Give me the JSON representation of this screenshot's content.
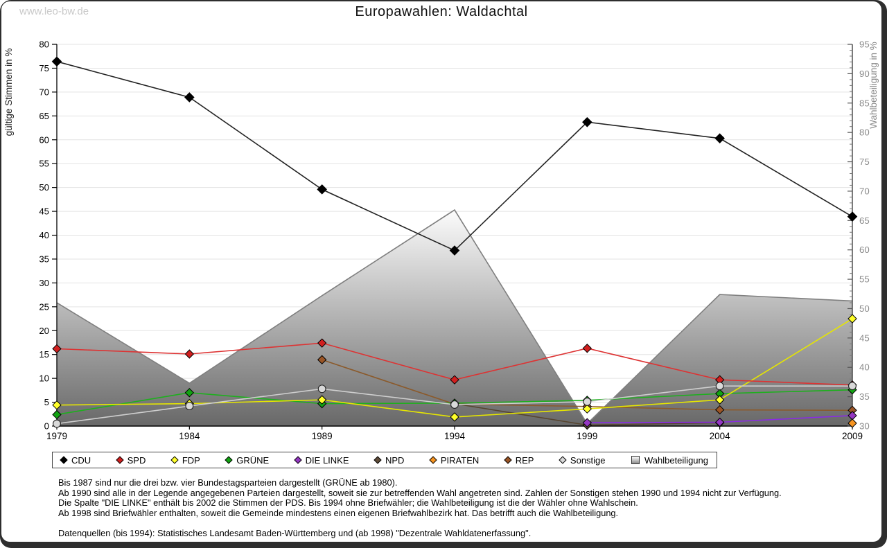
{
  "watermark": "www.leo-bw.de",
  "title": "Europawahlen: Waldachtal",
  "axes": {
    "left_label": "gültige Stimmen in %",
    "right_label": "Wahlbeteiligung in %",
    "left_min": 0,
    "left_max": 80,
    "right_min": 30,
    "right_max": 95,
    "left_ticks": [
      0,
      5,
      10,
      15,
      20,
      25,
      30,
      35,
      40,
      45,
      50,
      55,
      60,
      65,
      70,
      75,
      80
    ],
    "right_ticks": [
      30,
      35,
      40,
      45,
      50,
      55,
      60,
      65,
      70,
      75,
      80,
      85,
      90,
      95
    ]
  },
  "chart_data": {
    "type": "line",
    "x": [
      1979,
      1984,
      1989,
      1994,
      1999,
      2004,
      2009
    ],
    "series": [
      {
        "name": "CDU",
        "marker": "diamond",
        "color": "#000000",
        "line": "#222222",
        "values": [
          76.4,
          68.9,
          49.6,
          36.8,
          63.7,
          60.3,
          43.9
        ]
      },
      {
        "name": "SPD",
        "marker": "diamond",
        "color": "#d11f1f",
        "line": "#dd3333",
        "values": [
          16.2,
          15.1,
          17.4,
          9.7,
          16.3,
          9.7,
          8.6
        ]
      },
      {
        "name": "FDP",
        "marker": "diamond",
        "color": "#ffff2a",
        "line": "#e6e600",
        "values": [
          4.4,
          4.7,
          5.5,
          1.9,
          3.6,
          5.5,
          22.5
        ]
      },
      {
        "name": "GRÜNE",
        "marker": "diamond",
        "color": "#12a312",
        "line": "#1db01d",
        "values": [
          2.4,
          7.0,
          4.7,
          4.8,
          5.4,
          6.8,
          7.6
        ]
      },
      {
        "name": "DIE LINKE",
        "marker": "diamond",
        "color": "#9437c2",
        "line": "#8a2be2",
        "values": [
          null,
          null,
          null,
          null,
          0.7,
          0.8,
          2.2
        ]
      },
      {
        "name": "NPD",
        "marker": "diamond",
        "color": "#5f4c39",
        "line": "#57452f",
        "values": [
          null,
          null,
          null,
          4.7,
          0.2,
          0.7,
          null
        ]
      },
      {
        "name": "PIRATEN",
        "marker": "diamond",
        "color": "#f79420",
        "line": "#f79420",
        "values": [
          null,
          null,
          null,
          null,
          null,
          null,
          0.6
        ]
      },
      {
        "name": "REP",
        "marker": "diamond",
        "color": "#9a5526",
        "line": "#8b5a2b",
        "values": [
          null,
          null,
          13.9,
          4.6,
          4.1,
          3.4,
          3.3
        ]
      },
      {
        "name": "Sonstige",
        "marker": "circle",
        "color": "#d9d9d9",
        "line": "#cfcfcf",
        "values": [
          0.5,
          4.2,
          7.8,
          4.5,
          5.1,
          8.4,
          8.4
        ]
      }
    ],
    "turnout": {
      "name": "Wahlbeteiligung",
      "axis": "right",
      "values": [
        51.0,
        37.3,
        52.2,
        66.8,
        30.4,
        52.4,
        51.3
      ],
      "fill_top": "#fcfcfc",
      "fill_bottom": "#686868",
      "edge_color": "#7f7f7f"
    },
    "title": "Europawahlen: Waldachtal",
    "ylabel_left": "gültige Stimmen in %",
    "ylabel_right": "Wahlbeteiligung in %",
    "ylim_left": [
      0,
      80
    ],
    "ylim_right": [
      30,
      95
    ],
    "grid": true,
    "legend_position": "bottom"
  },
  "legend": {
    "items": [
      {
        "label": "CDU",
        "color": "#000000",
        "shape": "diamond"
      },
      {
        "label": "SPD",
        "color": "#d11f1f",
        "shape": "diamond"
      },
      {
        "label": "FDP",
        "color": "#ffff2a",
        "shape": "diamond"
      },
      {
        "label": "GRÜNE",
        "color": "#12a312",
        "shape": "diamond"
      },
      {
        "label": "DIE LINKE",
        "color": "#9437c2",
        "shape": "diamond"
      },
      {
        "label": "NPD",
        "color": "#5f4c39",
        "shape": "diamond"
      },
      {
        "label": "PIRATEN",
        "color": "#f79420",
        "shape": "diamond"
      },
      {
        "label": "REP",
        "color": "#9a5526",
        "shape": "diamond"
      },
      {
        "label": "Sonstige",
        "color": "#d9d9d9",
        "shape": "diamond"
      },
      {
        "label": "Wahlbeteiligung",
        "color": "#9a9a9a",
        "shape": "square"
      }
    ]
  },
  "footnotes": {
    "lines": [
      "Bis 1987 sind nur die drei bzw. vier Bundestagsparteien dargestellt (GRÜNE ab 1980).",
      "Ab 1990 sind alle in der Legende angegebenen Parteien dargestellt, soweit sie zur betreffenden Wahl angetreten sind. Zahlen der Sonstigen stehen 1990 und 1994 nicht zur Verfügung.",
      "Die Spalte \"DIE LINKE\" enthält bis 2002 die Stimmen der PDS. Bis 1994 ohne Briefwähler; die Wahlbeteiligung ist die der Wähler ohne Wahlschein.",
      "Ab 1998 sind Briefwähler enthalten, soweit die Gemeinde mindestens einen eigenen Briefwahlbezirk hat. Das betrifft auch die Wahlbeteiligung."
    ],
    "source": "Datenquellen (bis 1994): Statistisches Landesamt Baden-Württemberg und (ab 1998) \"Dezentrale Wahldatenerfassung\"."
  }
}
